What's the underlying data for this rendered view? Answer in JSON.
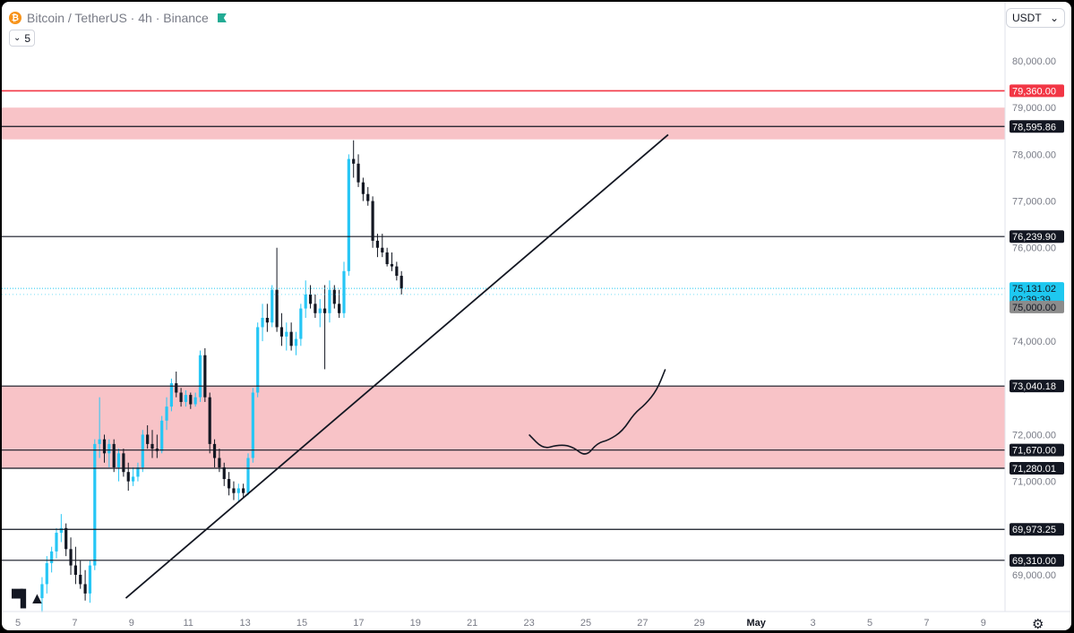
{
  "header": {
    "title": "Bitcoin / TetherUS · 4h · Binance",
    "indicator_count": "5",
    "currency": "USDT"
  },
  "colors": {
    "up": "#26c6f5",
    "down": "#131722",
    "zone": "#f8c3c7",
    "resistance_red": "#f23645",
    "last_price": "#1ec8f0",
    "round_level": "#8c8c8c"
  },
  "chart_data": {
    "type": "candlestick",
    "ylim": [
      68400,
      80600
    ],
    "y_ticks": [
      "80,000.00",
      "79,000.00",
      "78,000.00",
      "77,000.00",
      "76,000.00",
      "75,000.00",
      "74,000.00",
      "73,000.00",
      "72,000.00",
      "71,000.00",
      "70,000.00",
      "69,000.00"
    ],
    "x_ticks": [
      "5",
      "7",
      "9",
      "11",
      "13",
      "15",
      "17",
      "19",
      "21",
      "23",
      "25",
      "27",
      "29",
      "May",
      "3",
      "5",
      "7",
      "9"
    ],
    "zones": [
      {
        "name": "supply-zone",
        "from": 78320,
        "to": 79000
      },
      {
        "name": "demand-zone",
        "from": 71280.01,
        "to": 73040.18
      }
    ],
    "levels": [
      {
        "name": "resistance-red",
        "price": 79360,
        "label": "79,360.00",
        "style": "red"
      },
      {
        "name": "level-78595",
        "price": 78595.86,
        "label": "78,595.86",
        "style": "black"
      },
      {
        "name": "level-76239",
        "price": 76239.9,
        "label": "76,239.90",
        "style": "black"
      },
      {
        "name": "level-73040",
        "price": 73040.18,
        "label": "73,040.18",
        "style": "black"
      },
      {
        "name": "level-71670",
        "price": 71670,
        "label": "71,670.00",
        "style": "black"
      },
      {
        "name": "level-71280",
        "price": 71280.01,
        "label": "71,280.01",
        "style": "black"
      },
      {
        "name": "level-69973",
        "price": 69973.25,
        "label": "69,973.25",
        "style": "black"
      },
      {
        "name": "level-69310",
        "price": 69310,
        "label": "69,310.00",
        "style": "black"
      }
    ],
    "last_price": {
      "price": 75131.02,
      "label": "75,131.02",
      "countdown": "02:39:39"
    },
    "round_level": {
      "price": 75000,
      "label": "75,000.00"
    },
    "trendline": [
      {
        "day": 8.8,
        "price": 68500
      },
      {
        "day": 27.9,
        "price": 78420
      }
    ],
    "projection_path": [
      {
        "day": 23.0,
        "price": 72000
      },
      {
        "day": 23.5,
        "price": 71690
      },
      {
        "day": 24.0,
        "price": 71780
      },
      {
        "day": 24.5,
        "price": 71760
      },
      {
        "day": 25.0,
        "price": 71520
      },
      {
        "day": 25.4,
        "price": 71820
      },
      {
        "day": 25.8,
        "price": 71880
      },
      {
        "day": 26.3,
        "price": 72080
      },
      {
        "day": 26.7,
        "price": 72450
      },
      {
        "day": 27.1,
        "price": 72650
      },
      {
        "day": 27.5,
        "price": 72950
      },
      {
        "day": 27.8,
        "price": 73400
      }
    ],
    "candles": [
      {
        "o": 68500,
        "h": 68950,
        "l": 68200,
        "c": 68800
      },
      {
        "o": 68800,
        "h": 69400,
        "l": 68600,
        "c": 69250
      },
      {
        "o": 69250,
        "h": 69600,
        "l": 69050,
        "c": 69500
      },
      {
        "o": 69500,
        "h": 70000,
        "l": 69350,
        "c": 69900
      },
      {
        "o": 69900,
        "h": 70300,
        "l": 69700,
        "c": 70000
      },
      {
        "o": 70000,
        "h": 70100,
        "l": 69400,
        "c": 69550
      },
      {
        "o": 69550,
        "h": 69800,
        "l": 69000,
        "c": 69200
      },
      {
        "o": 69200,
        "h": 69600,
        "l": 68800,
        "c": 69000
      },
      {
        "o": 69000,
        "h": 69300,
        "l": 68700,
        "c": 68800
      },
      {
        "o": 68800,
        "h": 69100,
        "l": 68450,
        "c": 68600
      },
      {
        "o": 68600,
        "h": 69300,
        "l": 68400,
        "c": 69200
      },
      {
        "o": 69200,
        "h": 71900,
        "l": 69100,
        "c": 71800
      },
      {
        "o": 71800,
        "h": 72800,
        "l": 71500,
        "c": 71900
      },
      {
        "o": 71900,
        "h": 72000,
        "l": 71400,
        "c": 71600
      },
      {
        "o": 71600,
        "h": 71900,
        "l": 71300,
        "c": 71800
      },
      {
        "o": 71800,
        "h": 71900,
        "l": 71200,
        "c": 71300
      },
      {
        "o": 71300,
        "h": 71700,
        "l": 71000,
        "c": 71600
      },
      {
        "o": 71600,
        "h": 71700,
        "l": 71100,
        "c": 71200
      },
      {
        "o": 71200,
        "h": 71400,
        "l": 70800,
        "c": 71000
      },
      {
        "o": 71000,
        "h": 71300,
        "l": 70900,
        "c": 71100
      },
      {
        "o": 71100,
        "h": 71400,
        "l": 71000,
        "c": 71300
      },
      {
        "o": 71300,
        "h": 72100,
        "l": 71200,
        "c": 72000
      },
      {
        "o": 72000,
        "h": 72200,
        "l": 71700,
        "c": 71800
      },
      {
        "o": 71800,
        "h": 72100,
        "l": 71500,
        "c": 71700
      },
      {
        "o": 71700,
        "h": 72000,
        "l": 71500,
        "c": 71650
      },
      {
        "o": 71650,
        "h": 72400,
        "l": 71600,
        "c": 72300
      },
      {
        "o": 72300,
        "h": 72800,
        "l": 72100,
        "c": 72600
      },
      {
        "o": 72600,
        "h": 73200,
        "l": 72500,
        "c": 73100
      },
      {
        "o": 73100,
        "h": 73350,
        "l": 72800,
        "c": 72900
      },
      {
        "o": 72900,
        "h": 73000,
        "l": 72600,
        "c": 72700
      },
      {
        "o": 72700,
        "h": 72950,
        "l": 72600,
        "c": 72850
      },
      {
        "o": 72850,
        "h": 72900,
        "l": 72550,
        "c": 72650
      },
      {
        "o": 72650,
        "h": 72900,
        "l": 72600,
        "c": 72800
      },
      {
        "o": 72800,
        "h": 73800,
        "l": 72700,
        "c": 73700
      },
      {
        "o": 73700,
        "h": 73850,
        "l": 72700,
        "c": 72800
      },
      {
        "o": 72800,
        "h": 72900,
        "l": 71600,
        "c": 71800
      },
      {
        "o": 71800,
        "h": 71900,
        "l": 71300,
        "c": 71500
      },
      {
        "o": 71500,
        "h": 71700,
        "l": 71200,
        "c": 71300
      },
      {
        "o": 71300,
        "h": 71400,
        "l": 70900,
        "c": 71050
      },
      {
        "o": 71050,
        "h": 71200,
        "l": 70700,
        "c": 70850
      },
      {
        "o": 70850,
        "h": 71000,
        "l": 70600,
        "c": 70750
      },
      {
        "o": 70750,
        "h": 70950,
        "l": 70550,
        "c": 70850
      },
      {
        "o": 70850,
        "h": 70950,
        "l": 70650,
        "c": 70750
      },
      {
        "o": 70750,
        "h": 71600,
        "l": 70700,
        "c": 71500
      },
      {
        "o": 71500,
        "h": 73000,
        "l": 71400,
        "c": 72900
      },
      {
        "o": 72900,
        "h": 74400,
        "l": 72800,
        "c": 74300
      },
      {
        "o": 74300,
        "h": 74800,
        "l": 74000,
        "c": 74500
      },
      {
        "o": 74500,
        "h": 74800,
        "l": 74200,
        "c": 74400
      },
      {
        "o": 74400,
        "h": 75200,
        "l": 74300,
        "c": 75100
      },
      {
        "o": 75100,
        "h": 76000,
        "l": 74200,
        "c": 74300
      },
      {
        "o": 74300,
        "h": 74600,
        "l": 73900,
        "c": 74100
      },
      {
        "o": 74100,
        "h": 74400,
        "l": 73800,
        "c": 74200
      },
      {
        "o": 74200,
        "h": 74400,
        "l": 73800,
        "c": 73900
      },
      {
        "o": 73900,
        "h": 74200,
        "l": 73700,
        "c": 74050
      },
      {
        "o": 74050,
        "h": 74800,
        "l": 73900,
        "c": 74700
      },
      {
        "o": 74700,
        "h": 75300,
        "l": 74500,
        "c": 75000
      },
      {
        "o": 75000,
        "h": 75200,
        "l": 74700,
        "c": 74800
      },
      {
        "o": 74800,
        "h": 75000,
        "l": 74500,
        "c": 74600
      },
      {
        "o": 74600,
        "h": 74900,
        "l": 74300,
        "c": 74700
      },
      {
        "o": 74700,
        "h": 75200,
        "l": 73400,
        "c": 74600
      },
      {
        "o": 74600,
        "h": 75300,
        "l": 74400,
        "c": 75100
      },
      {
        "o": 75100,
        "h": 75200,
        "l": 74700,
        "c": 74800
      },
      {
        "o": 74800,
        "h": 75100,
        "l": 74500,
        "c": 74600
      },
      {
        "o": 74600,
        "h": 75700,
        "l": 74500,
        "c": 75500
      },
      {
        "o": 75500,
        "h": 78000,
        "l": 75400,
        "c": 77900
      },
      {
        "o": 77900,
        "h": 78300,
        "l": 77500,
        "c": 77800
      },
      {
        "o": 77800,
        "h": 78000,
        "l": 77300,
        "c": 77400
      },
      {
        "o": 77400,
        "h": 77500,
        "l": 77000,
        "c": 77150
      },
      {
        "o": 77150,
        "h": 77300,
        "l": 76900,
        "c": 77000
      },
      {
        "o": 77000,
        "h": 77100,
        "l": 76000,
        "c": 76150
      },
      {
        "o": 76150,
        "h": 76300,
        "l": 75800,
        "c": 76000
      },
      {
        "o": 76000,
        "h": 76300,
        "l": 75800,
        "c": 75900
      },
      {
        "o": 75900,
        "h": 76000,
        "l": 75600,
        "c": 75650
      },
      {
        "o": 75650,
        "h": 75900,
        "l": 75500,
        "c": 75600
      },
      {
        "o": 75600,
        "h": 75700,
        "l": 75300,
        "c": 75400
      },
      {
        "o": 75400,
        "h": 75500,
        "l": 75000,
        "c": 75131
      }
    ]
  }
}
